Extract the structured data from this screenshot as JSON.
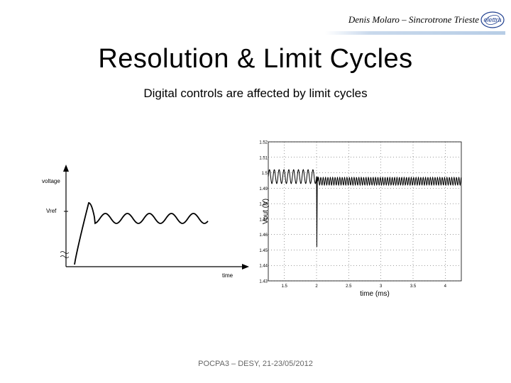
{
  "header": {
    "author": "Denis Molaro – Sincrotrone Trieste",
    "logo_text": "elettra"
  },
  "slide": {
    "title": "Resolution & Limit Cycles",
    "subtitle": "Digital controls are affected by limit cycles"
  },
  "footer": {
    "text": "POCPA3 – DESY, 21-23/05/2012"
  },
  "chart_data": [
    {
      "type": "line",
      "ylabel": "voltage",
      "xlabel": "time",
      "y_tick_label": "Vref",
      "series": [
        {
          "description_values": "voltage rises steeply, overshoots, then oscillates around Vref",
          "values": []
        }
      ]
    },
    {
      "type": "line",
      "xlabel": "time (ms)",
      "ylabel": "Vout (V)",
      "x_ticks": [
        "1.5",
        "2",
        "2.5",
        "3",
        "3.5",
        "4"
      ],
      "y_ticks": [
        "1.52",
        "1.51",
        "1.5",
        "1.49",
        "1.48",
        "1.47",
        "1.46",
        "1.45",
        "1.44",
        "1.43"
      ],
      "xlim": [
        1.25,
        4.25
      ],
      "ylim": [
        1.43,
        1.52
      ],
      "series": [
        {
          "segments": [
            {
              "x_range": [
                1.25,
                2.0
              ],
              "center": 1.4975,
              "amplitude": 0.0045,
              "period": 0.075
            },
            {
              "dip_at": 2.0,
              "min": 1.452
            },
            {
              "x_range": [
                2.02,
                4.25
              ],
              "center": 1.4945,
              "amplitude": 0.0025,
              "period": 0.037
            }
          ]
        }
      ]
    }
  ]
}
